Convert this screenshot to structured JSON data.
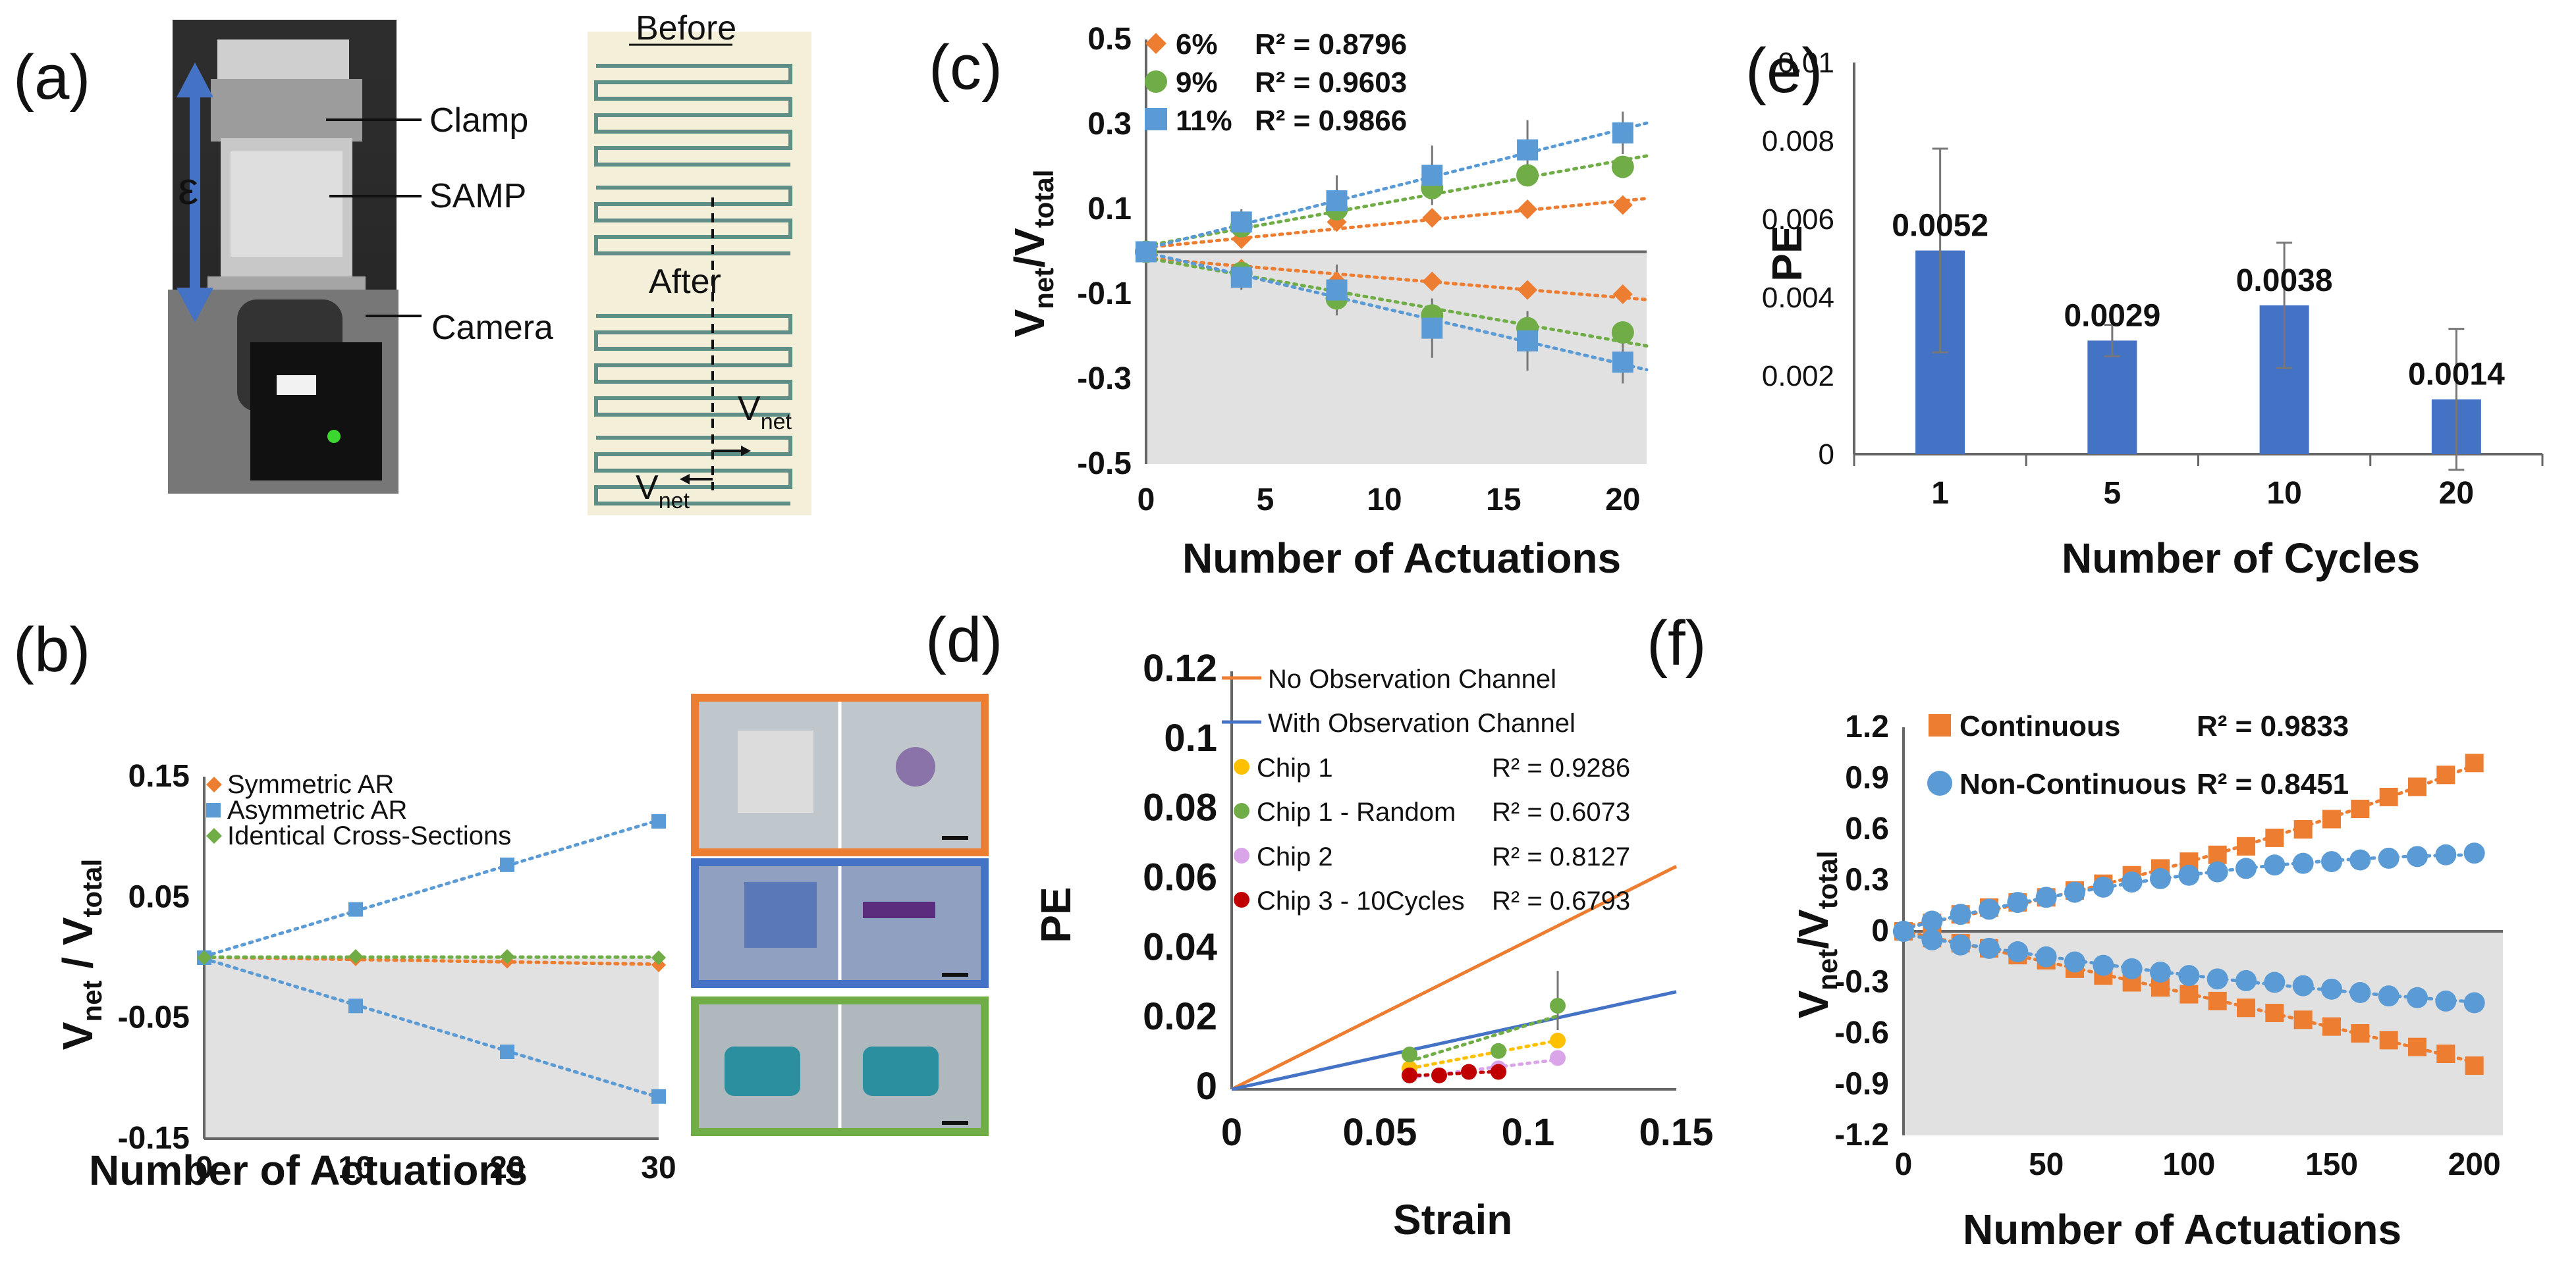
{
  "panel_labels": {
    "a": "(a)",
    "b": "(b)",
    "c": "(c)",
    "d": "(d)",
    "e": "(e)",
    "f": "(f)"
  },
  "photo_a": {
    "epsilon": "ε",
    "labels": [
      "Clamp",
      "SAMP",
      "Camera"
    ],
    "before": "Before",
    "after": "After",
    "v_main": "V",
    "v_sub": "net"
  },
  "colors": {
    "orange": "#ed7d31",
    "blue": "#5b9bd5",
    "green": "#70ad47",
    "bar_blue": "#4472c4",
    "yellow": "#ffc000",
    "pink": "#d9a5e8",
    "red": "#c00000",
    "shade": "#e1e1e1",
    "frame_orange": "#ed7d31",
    "frame_blue": "#4472c4",
    "frame_green": "#70ad47"
  },
  "chart_data": [
    {
      "id": "b",
      "type": "scatter",
      "xlabel": "Number of Actuations",
      "ylabel_main": "V",
      "ylabel_sub1": "net",
      "ylabel_mid": " / V",
      "ylabel_sub2": "total",
      "x_ticks": [
        "0",
        "10",
        "20",
        "30"
      ],
      "y_ticks": [
        "0.15",
        "0.05",
        "-0.05",
        "-0.15"
      ],
      "xlim": [
        0,
        30
      ],
      "ylim": [
        -0.15,
        0.15
      ],
      "x": [
        0,
        10,
        20,
        30
      ],
      "series": [
        {
          "name": "Symmetric AR",
          "marker": "diamond",
          "color": "orange",
          "pos": [
            0,
            -0.001,
            -0.003,
            -0.006
          ],
          "neg": [
            0,
            -0.001,
            -0.003,
            -0.006
          ]
        },
        {
          "name": "Asymmetric AR",
          "marker": "square",
          "color": "blue",
          "pos": [
            0,
            0.04,
            0.077,
            0.113
          ],
          "neg": [
            0,
            -0.04,
            -0.078,
            -0.115
          ]
        },
        {
          "name": "Identical Cross-Sections",
          "marker": "diamond",
          "color": "green",
          "pos": [
            0,
            0.001,
            0.001,
            0.0
          ],
          "neg": [
            0,
            0.001,
            0.001,
            0.0
          ]
        }
      ]
    },
    {
      "id": "c",
      "type": "scatter",
      "xlabel": "Number of Actuations",
      "ylabel_main": "V",
      "ylabel_sub1": "net",
      "ylabel_mid": "/V",
      "ylabel_sub2": "total",
      "x_ticks": [
        "0",
        "5",
        "10",
        "15",
        "20"
      ],
      "y_ticks": [
        "0.5",
        "0.3",
        "0.1",
        "-0.1",
        "-0.3",
        "-0.5"
      ],
      "xlim": [
        0,
        21
      ],
      "ylim": [
        -0.5,
        0.5
      ],
      "x": [
        0,
        4,
        8,
        12,
        16,
        20
      ],
      "series": [
        {
          "name": "6%",
          "r2": "R² = 0.8796",
          "marker": "diamond",
          "color": "orange",
          "pos": [
            0,
            0.03,
            0.07,
            0.08,
            0.1,
            0.11
          ],
          "neg": [
            0,
            -0.04,
            -0.07,
            -0.07,
            -0.09,
            -0.1
          ]
        },
        {
          "name": "9%",
          "r2": "R² = 0.9603",
          "marker": "circle",
          "color": "green",
          "pos": [
            0,
            0.06,
            0.1,
            0.15,
            0.18,
            0.2
          ],
          "neg": [
            0,
            -0.05,
            -0.11,
            -0.15,
            -0.18,
            -0.19
          ]
        },
        {
          "name": "11%",
          "r2": "R² = 0.9866",
          "marker": "square",
          "color": "blue",
          "pos": [
            0,
            0.07,
            0.12,
            0.18,
            0.24,
            0.28
          ],
          "neg": [
            0,
            -0.06,
            -0.09,
            -0.18,
            -0.21,
            -0.26
          ]
        }
      ],
      "error": [
        0,
        0.03,
        0.06,
        0.07,
        0.07,
        0.05
      ]
    },
    {
      "id": "d",
      "type": "scatter",
      "xlabel": "Strain",
      "ylabel": "PE",
      "x_ticks": [
        "0",
        "0.05",
        "0.1",
        "0.15"
      ],
      "y_ticks": [
        "0.12",
        "0.1",
        "0.08",
        "0.06",
        "0.04",
        "0.02",
        "0"
      ],
      "xlim": [
        0,
        0.15
      ],
      "ylim": [
        0,
        0.12
      ],
      "lines": [
        {
          "name": "No Observation Channel",
          "color": "orange",
          "x": [
            0,
            0.15
          ],
          "y": [
            0,
            0.064
          ]
        },
        {
          "name": "With Observation Channel",
          "color": "bar_blue",
          "x": [
            0,
            0.15
          ],
          "y": [
            0,
            0.028
          ]
        }
      ],
      "series": [
        {
          "name": "Chip 1",
          "r2": "R² = 0.9286",
          "color": "yellow",
          "x": [
            0.06,
            0.11
          ],
          "y": [
            0.006,
            0.014
          ]
        },
        {
          "name": "Chip 1 - Random",
          "r2": "R² = 0.6073",
          "color": "green",
          "x": [
            0.06,
            0.09,
            0.11
          ],
          "y": [
            0.01,
            0.011,
            0.024
          ]
        },
        {
          "name": "Chip 2",
          "r2": "R² = 0.8127",
          "color": "pink",
          "x": [
            0.06,
            0.07,
            0.08,
            0.09,
            0.11
          ],
          "y": [
            0.004,
            0.004,
            0.005,
            0.006,
            0.009
          ]
        },
        {
          "name": "Chip 3 - 10Cycles",
          "r2": "R² = 0.6793",
          "color": "red",
          "x": [
            0.06,
            0.07,
            0.08,
            0.09
          ],
          "y": [
            0.004,
            0.004,
            0.005,
            0.005
          ]
        }
      ]
    },
    {
      "id": "e",
      "type": "bar",
      "xlabel": "Number of Cycles",
      "ylabel": "PE",
      "categories": [
        "1",
        "5",
        "10",
        "20"
      ],
      "values": [
        0.0052,
        0.0029,
        0.0038,
        0.0014
      ],
      "labels": [
        "0.0052",
        "0.0029",
        "0.0038",
        "0.0014"
      ],
      "errors": [
        0.0026,
        0.0004,
        0.0016,
        0.0018
      ],
      "y_ticks": [
        "0.01",
        "0.008",
        "0.006",
        "0.004",
        "0.002",
        "0"
      ],
      "ylim": [
        0,
        0.01
      ]
    },
    {
      "id": "f",
      "type": "scatter",
      "xlabel": "Number of Actuations",
      "ylabel_main": "V",
      "ylabel_sub1": "net",
      "ylabel_mid": "/V",
      "ylabel_sub2": "total",
      "x_ticks": [
        "0",
        "50",
        "100",
        "150",
        "200"
      ],
      "y_ticks": [
        "1.2",
        "0.9",
        "0.6",
        "0.3",
        "0",
        "-0.3",
        "-0.6",
        "-0.9",
        "-1.2"
      ],
      "xlim": [
        0,
        210
      ],
      "ylim": [
        -1.2,
        1.2
      ],
      "x": [
        0,
        10,
        20,
        30,
        40,
        50,
        60,
        70,
        80,
        90,
        100,
        110,
        120,
        130,
        140,
        150,
        160,
        170,
        180,
        190,
        200
      ],
      "series": [
        {
          "name": "Continuous",
          "r2": "R² = 0.9833",
          "marker": "square",
          "color": "orange",
          "pos": [
            0,
            0.05,
            0.1,
            0.14,
            0.17,
            0.2,
            0.24,
            0.28,
            0.33,
            0.37,
            0.41,
            0.45,
            0.5,
            0.55,
            0.6,
            0.66,
            0.72,
            0.79,
            0.85,
            0.92,
            0.99
          ],
          "neg": [
            0,
            -0.04,
            -0.07,
            -0.1,
            -0.14,
            -0.17,
            -0.22,
            -0.26,
            -0.3,
            -0.33,
            -0.37,
            -0.41,
            -0.45,
            -0.48,
            -0.52,
            -0.56,
            -0.6,
            -0.64,
            -0.68,
            -0.72,
            -0.79
          ]
        },
        {
          "name": "Non-Continuous",
          "r2": "R² = 0.8451",
          "marker": "circle",
          "color": "blue",
          "pos": [
            0,
            0.06,
            0.1,
            0.13,
            0.17,
            0.2,
            0.23,
            0.26,
            0.29,
            0.31,
            0.33,
            0.35,
            0.37,
            0.39,
            0.4,
            0.41,
            0.42,
            0.43,
            0.44,
            0.45,
            0.46
          ],
          "neg": [
            0,
            -0.05,
            -0.08,
            -0.1,
            -0.12,
            -0.15,
            -0.18,
            -0.2,
            -0.22,
            -0.24,
            -0.26,
            -0.28,
            -0.29,
            -0.3,
            -0.32,
            -0.34,
            -0.36,
            -0.38,
            -0.39,
            -0.41,
            -0.42
          ]
        }
      ]
    }
  ]
}
